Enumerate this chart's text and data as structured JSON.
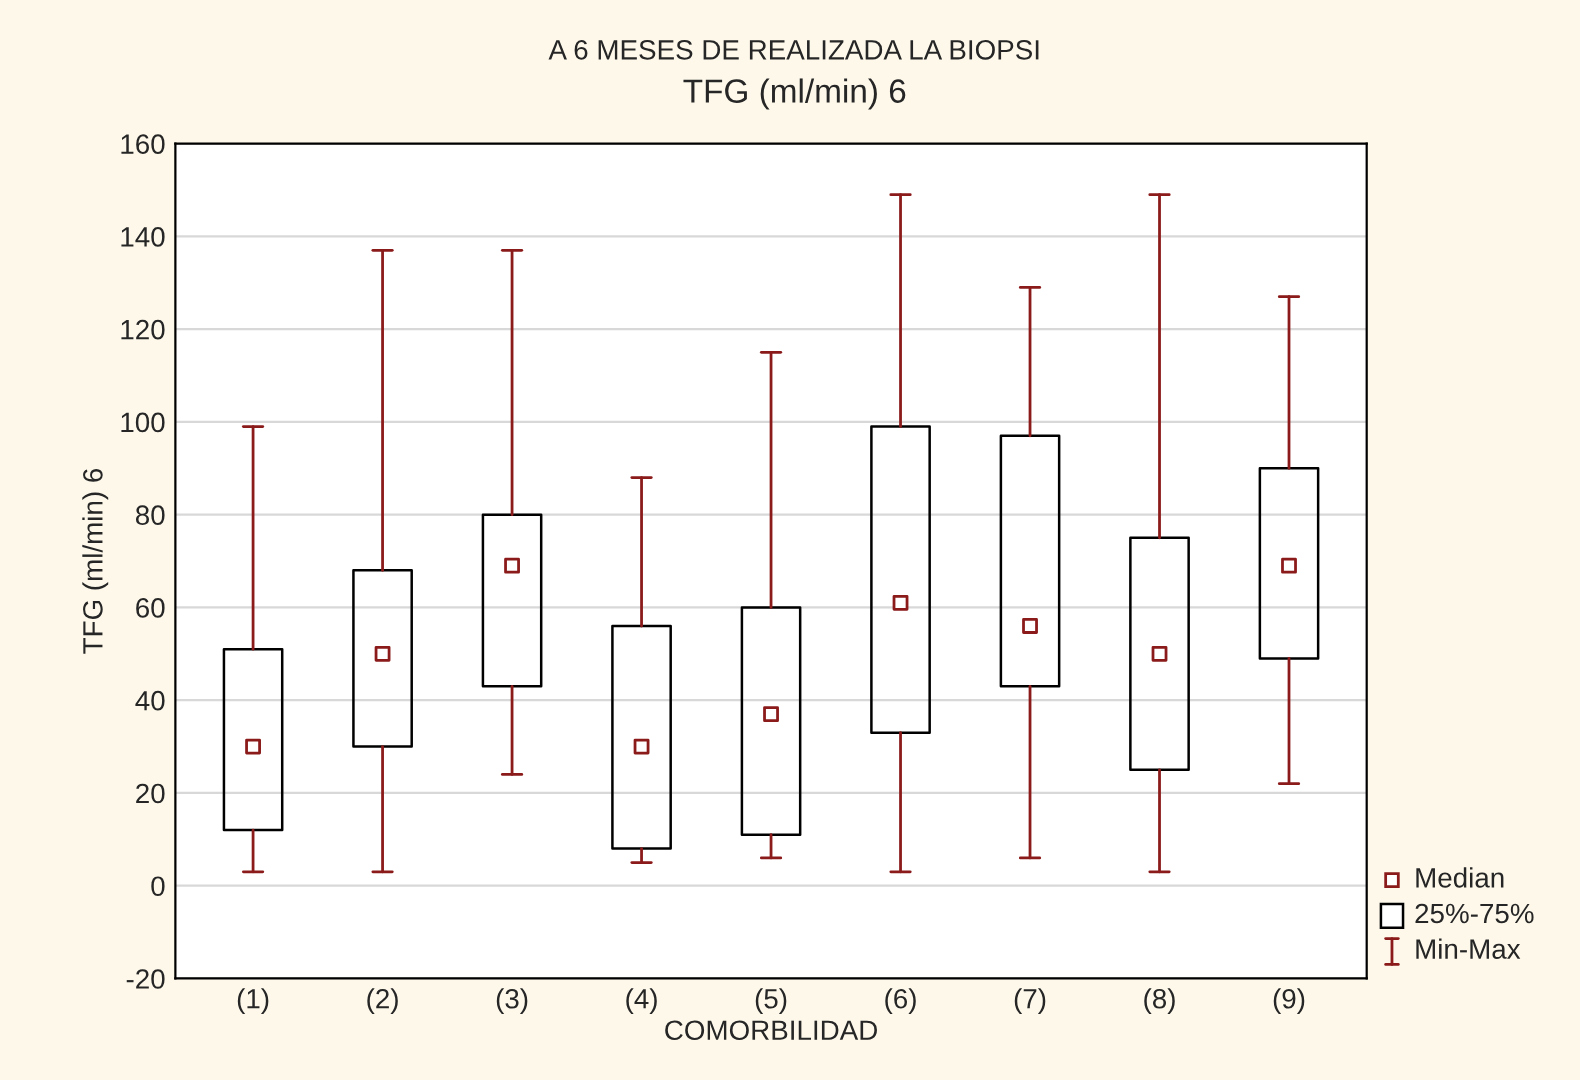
{
  "chart_data": {
    "type": "box",
    "title": "A 6 MESES DE REALIZADA LA BIOPSI",
    "subtitle": "TFG (ml/min) 6",
    "xlabel": "COMORBILIDAD",
    "ylabel": "TFG (ml/min) 6",
    "categories": [
      "(1)",
      "(2)",
      "(3)",
      "(4)",
      "(5)",
      "(6)",
      "(7)",
      "(8)",
      "(9)"
    ],
    "color": "#000000",
    "boxes": [
      {
        "low": 3,
        "q1": 12,
        "median": 30,
        "q3": 51,
        "high": 99
      },
      {
        "low": 3,
        "q1": 30,
        "median": 50,
        "q3": 68,
        "high": 137
      },
      {
        "low": 24,
        "q1": 43,
        "median": 69,
        "q3": 80,
        "high": 137
      },
      {
        "low": 5,
        "q1": 8,
        "median": 30,
        "q3": 56,
        "high": 88
      },
      {
        "low": 6,
        "q1": 11,
        "median": 37,
        "q3": 60,
        "high": 115
      },
      {
        "low": 3,
        "q1": 33,
        "median": 61,
        "q3": 99,
        "high": 149
      },
      {
        "low": 6,
        "q1": 43,
        "median": 56,
        "q3": 97,
        "high": 129
      },
      {
        "low": 3,
        "q1": 25,
        "median": 50,
        "q3": 75,
        "high": 149
      },
      {
        "low": 22,
        "q1": 49,
        "median": 69,
        "q3": 90,
        "high": 127
      }
    ],
    "ylim": [
      -20,
      160
    ],
    "yticks": [
      -20,
      0,
      20,
      40,
      60,
      80,
      100,
      120,
      140,
      160
    ],
    "grid": "y",
    "annotations": [
      "Median",
      "25%-75%",
      "Min-Max"
    ]
  }
}
